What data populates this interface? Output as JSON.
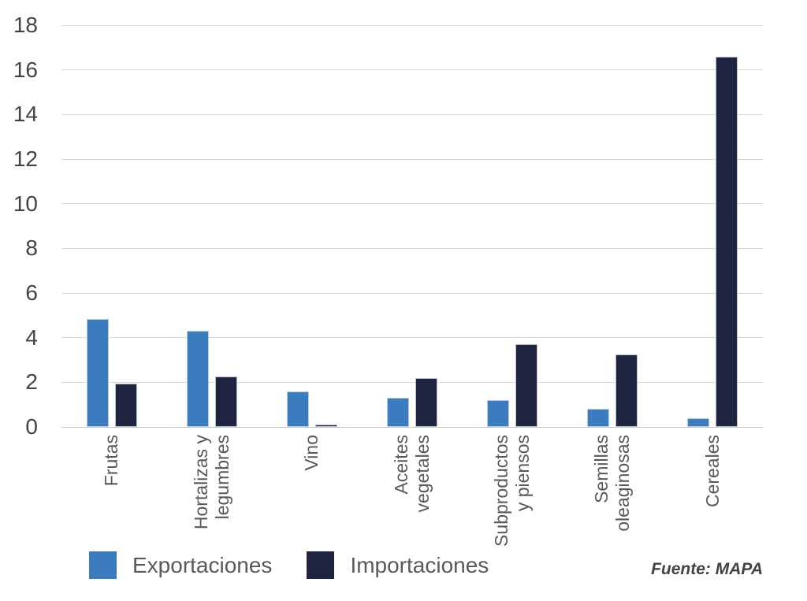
{
  "chart_data": {
    "type": "bar",
    "title": "",
    "xlabel": "",
    "ylabel": "",
    "categories": [
      "Frutas",
      "Hortalizas y\nlegumbres",
      "Vino",
      "Aceites\nvegetales",
      "Subproductos\ny piensos",
      "Semillas\noleaginosas",
      "Cereales"
    ],
    "series": [
      {
        "name": "Exportaciones",
        "color": "#3a7cbe",
        "values": [
          4.85,
          4.3,
          1.6,
          1.3,
          1.2,
          0.8,
          0.4
        ]
      },
      {
        "name": "Importaciones",
        "color": "#1e2340",
        "values": [
          1.95,
          2.25,
          0.1,
          2.2,
          3.7,
          3.25,
          16.6
        ]
      }
    ],
    "ylim": [
      0,
      18
    ],
    "yticks": [
      0,
      2,
      4,
      6,
      8,
      10,
      12,
      14,
      16,
      18
    ],
    "grid": true,
    "legend_position": "bottom-left",
    "source": "Fuente: MAPA"
  },
  "colors": {
    "exportaciones": "#3a7cbe",
    "importaciones": "#1e2340",
    "gridline": "#d9d9d9",
    "baseline": "#c6c6c6",
    "axis_text": "#404347",
    "category_text": "#595959"
  }
}
